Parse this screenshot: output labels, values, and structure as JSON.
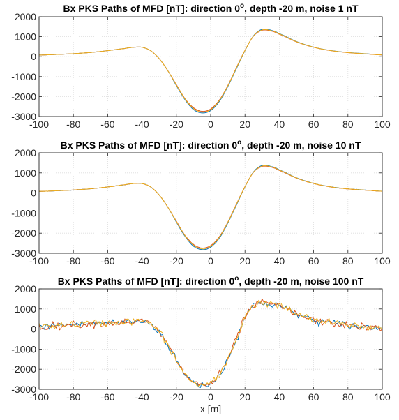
{
  "chart_data": [
    {
      "type": "line",
      "title": "Bx PKS Paths of MFD [nT]: direction 0",
      "title_sup": "o",
      "title_rest": ", depth -20 m, noise 1 nT",
      "xlabel": "",
      "ylabel": "",
      "xlim": [
        -100,
        100
      ],
      "ylim": [
        -3000,
        2000
      ],
      "xticks": [
        "-100",
        "-80",
        "-60",
        "-40",
        "-20",
        "0",
        "20",
        "40",
        "60",
        "80",
        "100"
      ],
      "yticks": [
        "-3000",
        "-2000",
        "-1000",
        "0",
        "1000",
        "2000"
      ],
      "grid": true,
      "noise": 1,
      "series_colors": [
        "#0072BD",
        "#D95319",
        "#EDB120"
      ],
      "x": [
        -100,
        -90,
        -80,
        -70,
        -60,
        -50,
        -45,
        -40,
        -35,
        -30,
        -25,
        -20,
        -15,
        -10,
        -5,
        0,
        5,
        10,
        15,
        20,
        25,
        30,
        35,
        40,
        50,
        60,
        70,
        80,
        90,
        100
      ],
      "series": [
        {
          "values": [
            80,
            110,
            150,
            210,
            300,
            410,
            470,
            470,
            300,
            -100,
            -700,
            -1450,
            -2150,
            -2650,
            -2820,
            -2700,
            -2250,
            -1500,
            -600,
            300,
            1050,
            1370,
            1330,
            1150,
            760,
            480,
            310,
            210,
            150,
            90
          ]
        },
        {
          "values": [
            80,
            110,
            150,
            210,
            300,
            410,
            470,
            470,
            300,
            -100,
            -700,
            -1400,
            -2100,
            -2560,
            -2740,
            -2620,
            -2180,
            -1450,
            -550,
            320,
            1030,
            1320,
            1290,
            1120,
            740,
            470,
            300,
            200,
            140,
            85
          ]
        },
        {
          "values": [
            80,
            110,
            150,
            210,
            300,
            410,
            470,
            470,
            300,
            -100,
            -700,
            -1420,
            -2120,
            -2600,
            -2780,
            -2660,
            -2210,
            -1470,
            -570,
            310,
            1040,
            1340,
            1310,
            1135,
            750,
            475,
            305,
            205,
            145,
            88
          ]
        }
      ]
    },
    {
      "type": "line",
      "title": "Bx PKS Paths of MFD [nT]: direction 0",
      "title_sup": "o",
      "title_rest": ", depth -20 m, noise 10 nT",
      "xlabel": "",
      "ylabel": "",
      "xlim": [
        -100,
        100
      ],
      "ylim": [
        -3000,
        2000
      ],
      "xticks": [
        "-100",
        "-80",
        "-60",
        "-40",
        "-20",
        "0",
        "20",
        "40",
        "60",
        "80",
        "100"
      ],
      "yticks": [
        "-3000",
        "-2000",
        "-1000",
        "0",
        "1000",
        "2000"
      ],
      "grid": true,
      "noise": 10,
      "series_colors": [
        "#0072BD",
        "#D95319",
        "#EDB120"
      ],
      "x": [
        -100,
        -90,
        -80,
        -70,
        -60,
        -50,
        -45,
        -40,
        -35,
        -30,
        -25,
        -20,
        -15,
        -10,
        -5,
        0,
        5,
        10,
        15,
        20,
        25,
        30,
        35,
        40,
        50,
        60,
        70,
        80,
        90,
        100
      ],
      "series": [
        {
          "values": [
            80,
            110,
            150,
            210,
            300,
            410,
            470,
            470,
            300,
            -100,
            -700,
            -1450,
            -2150,
            -2650,
            -2820,
            -2700,
            -2250,
            -1500,
            -600,
            300,
            1050,
            1370,
            1330,
            1150,
            760,
            480,
            310,
            210,
            150,
            90
          ]
        },
        {
          "values": [
            80,
            110,
            150,
            210,
            300,
            410,
            470,
            470,
            300,
            -100,
            -700,
            -1400,
            -2100,
            -2560,
            -2740,
            -2620,
            -2180,
            -1450,
            -550,
            320,
            1030,
            1320,
            1290,
            1120,
            740,
            470,
            300,
            200,
            140,
            85
          ]
        },
        {
          "values": [
            80,
            110,
            150,
            210,
            300,
            410,
            470,
            470,
            300,
            -100,
            -700,
            -1420,
            -2120,
            -2600,
            -2780,
            -2660,
            -2210,
            -1470,
            -570,
            310,
            1040,
            1340,
            1310,
            1135,
            750,
            475,
            305,
            205,
            145,
            88
          ]
        }
      ]
    },
    {
      "type": "line",
      "title": "Bx PKS Paths of MFD [nT]: direction 0",
      "title_sup": "o",
      "title_rest": ", depth -20 m, noise 100 nT",
      "xlabel": "x [m]",
      "ylabel": "",
      "xlim": [
        -100,
        100
      ],
      "ylim": [
        -3000,
        2000
      ],
      "xticks": [
        "-100",
        "-80",
        "-60",
        "-40",
        "-20",
        "0",
        "20",
        "40",
        "60",
        "80",
        "100"
      ],
      "yticks": [
        "-3000",
        "-2000",
        "-1000",
        "0",
        "1000",
        "2000"
      ],
      "grid": true,
      "noise": 100,
      "series_colors": [
        "#0072BD",
        "#D95319",
        "#EDB120"
      ],
      "x": [
        -100,
        -90,
        -80,
        -70,
        -60,
        -50,
        -45,
        -40,
        -35,
        -30,
        -25,
        -20,
        -15,
        -10,
        -5,
        0,
        5,
        10,
        15,
        20,
        25,
        30,
        35,
        40,
        50,
        60,
        70,
        80,
        90,
        100
      ],
      "series": [
        {
          "values": [
            120,
            180,
            220,
            270,
            300,
            350,
            380,
            390,
            250,
            -150,
            -800,
            -1550,
            -2250,
            -2650,
            -2780,
            -2700,
            -2300,
            -1500,
            -500,
            600,
            1150,
            1300,
            1250,
            1150,
            750,
            450,
            300,
            200,
            100,
            50
          ]
        },
        {
          "values": [
            110,
            170,
            210,
            260,
            290,
            340,
            370,
            380,
            240,
            -160,
            -810,
            -1540,
            -2240,
            -2640,
            -2770,
            -2690,
            -2290,
            -1490,
            -490,
            590,
            1140,
            1290,
            1240,
            1140,
            740,
            440,
            290,
            190,
            90,
            40
          ]
        },
        {
          "values": [
            130,
            190,
            230,
            280,
            310,
            360,
            390,
            400,
            260,
            -140,
            -790,
            -1560,
            -2260,
            -2660,
            -2790,
            -2710,
            -2310,
            -1510,
            -510,
            610,
            1160,
            1310,
            1260,
            1160,
            760,
            460,
            310,
            210,
            110,
            60
          ]
        }
      ]
    }
  ]
}
